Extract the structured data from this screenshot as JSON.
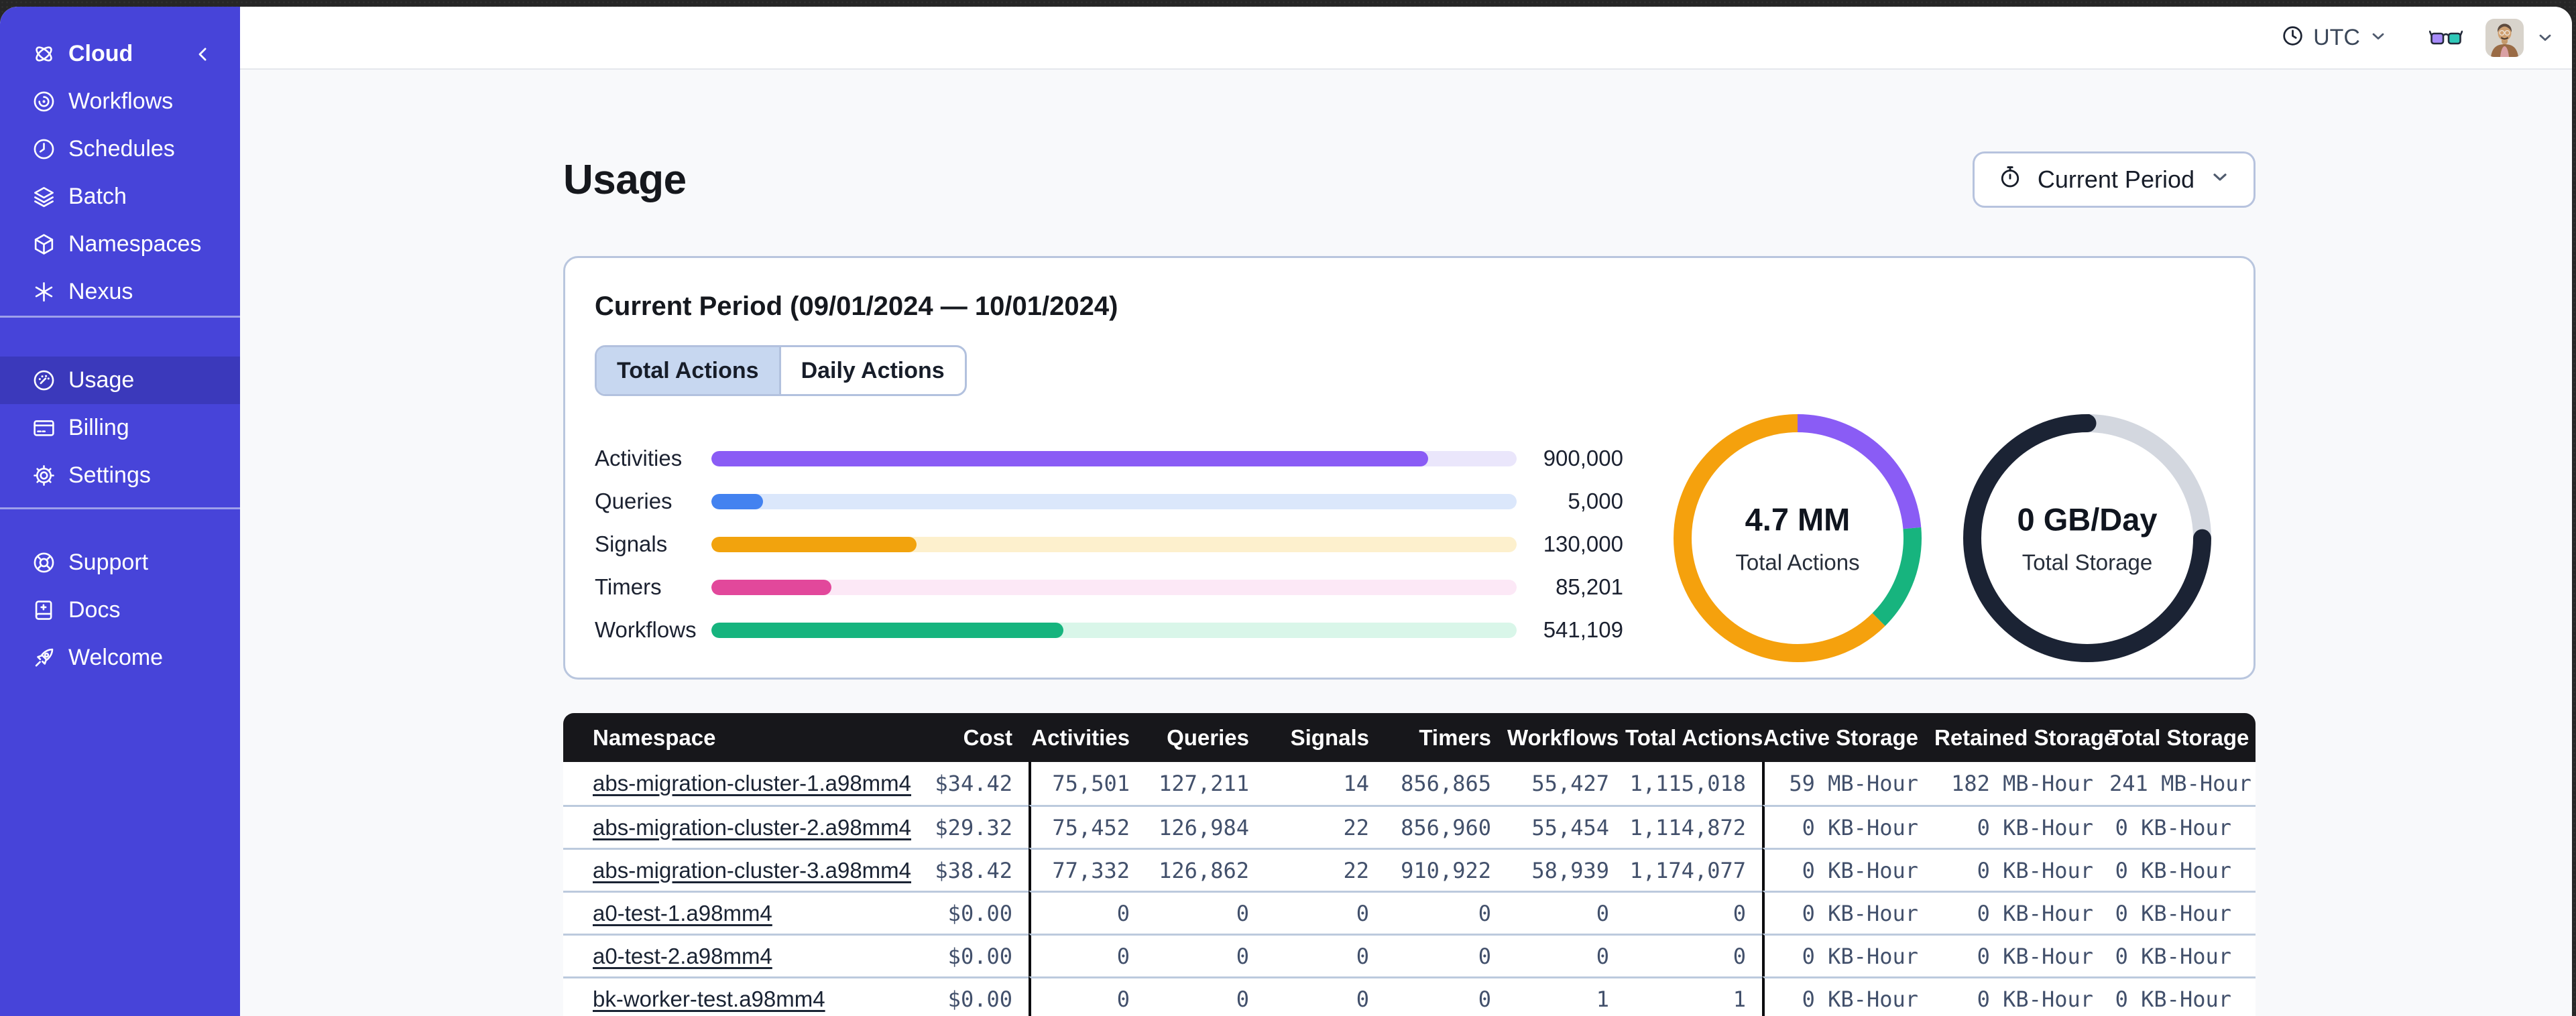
{
  "topbar": {
    "timezone_label": "UTC"
  },
  "sidebar": {
    "brand_label": "Cloud",
    "items": [
      {
        "id": "workflows",
        "label": "Workflows",
        "icon": "workflows-icon",
        "section": 0,
        "selected": false
      },
      {
        "id": "schedules",
        "label": "Schedules",
        "icon": "clock-icon",
        "section": 0,
        "selected": false
      },
      {
        "id": "batch",
        "label": "Batch",
        "icon": "layers-icon",
        "section": 0,
        "selected": false
      },
      {
        "id": "namespaces",
        "label": "Namespaces",
        "icon": "cube-icon",
        "section": 0,
        "selected": false
      },
      {
        "id": "nexus",
        "label": "Nexus",
        "icon": "asterisk-icon",
        "section": 0,
        "selected": false
      },
      {
        "id": "usage",
        "label": "Usage",
        "icon": "gauge-icon",
        "section": 1,
        "selected": true
      },
      {
        "id": "billing",
        "label": "Billing",
        "icon": "credit-card-icon",
        "section": 1,
        "selected": false
      },
      {
        "id": "settings",
        "label": "Settings",
        "icon": "gear-icon",
        "section": 1,
        "selected": false
      },
      {
        "id": "support",
        "label": "Support",
        "icon": "lifebuoy-icon",
        "section": 2,
        "selected": false
      },
      {
        "id": "docs",
        "label": "Docs",
        "icon": "book-icon",
        "section": 2,
        "selected": false
      },
      {
        "id": "welcome",
        "label": "Welcome",
        "icon": "rocket-icon",
        "section": 2,
        "selected": false
      }
    ]
  },
  "page": {
    "title": "Usage",
    "period_button_label": "Current Period"
  },
  "usage_card": {
    "title": "Current Period (09/01/2024 — 10/01/2024)",
    "tabs": [
      {
        "label": "Total Actions",
        "selected": true
      },
      {
        "label": "Daily Actions",
        "selected": false
      }
    ]
  },
  "chart_data": [
    {
      "type": "bar",
      "title": "Actions by type (current period)",
      "categories": [
        "Activities",
        "Queries",
        "Signals",
        "Timers",
        "Workflows"
      ],
      "values": [
        900000,
        5000,
        130000,
        85201,
        541109
      ],
      "value_labels": [
        "900,000",
        "5,000",
        "130,000",
        "85,201",
        "541,109"
      ],
      "fill_pct": [
        89,
        6.4,
        25.5,
        14.9,
        43.7
      ],
      "bar_colors": [
        "#8a5cf5",
        "#4382f0",
        "#f2a30d",
        "#e2489b",
        "#16b47e"
      ],
      "track_colors": [
        "#eae6fb",
        "#dbe7fb",
        "#fdf0cd",
        "#fce8f6",
        "#d9f6e9"
      ],
      "legend": "none",
      "grid": "off"
    },
    {
      "type": "donut",
      "center_value": "4.7 MM",
      "center_label": "Total Actions",
      "segments": [
        {
          "name": "purple-segment",
          "color": "#8a5cf5",
          "fraction": 0.236
        },
        {
          "name": "green-segment",
          "color": "#17b47e",
          "fraction": 0.139
        },
        {
          "name": "orange-segment",
          "color": "#f5a10d",
          "fraction": 0.625
        }
      ]
    },
    {
      "type": "donut",
      "center_value": "0 GB/Day",
      "center_label": "Total Storage",
      "segments": [
        {
          "name": "track-segment",
          "color": "#d3d7df",
          "fraction": 0.25
        },
        {
          "name": "filled-segment",
          "color": "#1b2334",
          "fraction": 0.75,
          "cap": "round"
        }
      ]
    }
  ],
  "table": {
    "columns": [
      "Namespace",
      "Cost",
      "Activities",
      "Queries",
      "Signals",
      "Timers",
      "Workflows",
      "Total Actions",
      "Active Storage",
      "Retained Storage",
      "Total Storage"
    ],
    "rows": [
      [
        "abs-migration-cluster-1.a98mm4",
        "$34.42",
        "75,501",
        "127,211",
        "14",
        "856,865",
        "55,427",
        "1,115,018",
        "59 MB-Hour",
        "182 MB-Hour",
        "241 MB-Hour"
      ],
      [
        "abs-migration-cluster-2.a98mm4",
        "$29.32",
        "75,452",
        "126,984",
        "22",
        "856,960",
        "55,454",
        "1,114,872",
        "0 KB-Hour",
        "0 KB-Hour",
        "0 KB-Hour"
      ],
      [
        "abs-migration-cluster-3.a98mm4",
        "$38.42",
        "77,332",
        "126,862",
        "22",
        "910,922",
        "58,939",
        "1,174,077",
        "0 KB-Hour",
        "0 KB-Hour",
        "0 KB-Hour"
      ],
      [
        "a0-test-1.a98mm4",
        "$0.00",
        "0",
        "0",
        "0",
        "0",
        "0",
        "0",
        "0 KB-Hour",
        "0 KB-Hour",
        "0 KB-Hour"
      ],
      [
        "a0-test-2.a98mm4",
        "$0.00",
        "0",
        "0",
        "0",
        "0",
        "0",
        "0",
        "0 KB-Hour",
        "0 KB-Hour",
        "0 KB-Hour"
      ],
      [
        "bk-worker-test.a98mm4",
        "$0.00",
        "0",
        "0",
        "0",
        "0",
        "1",
        "1",
        "0 KB-Hour",
        "0 KB-Hour",
        "0 KB-Hour"
      ]
    ]
  }
}
